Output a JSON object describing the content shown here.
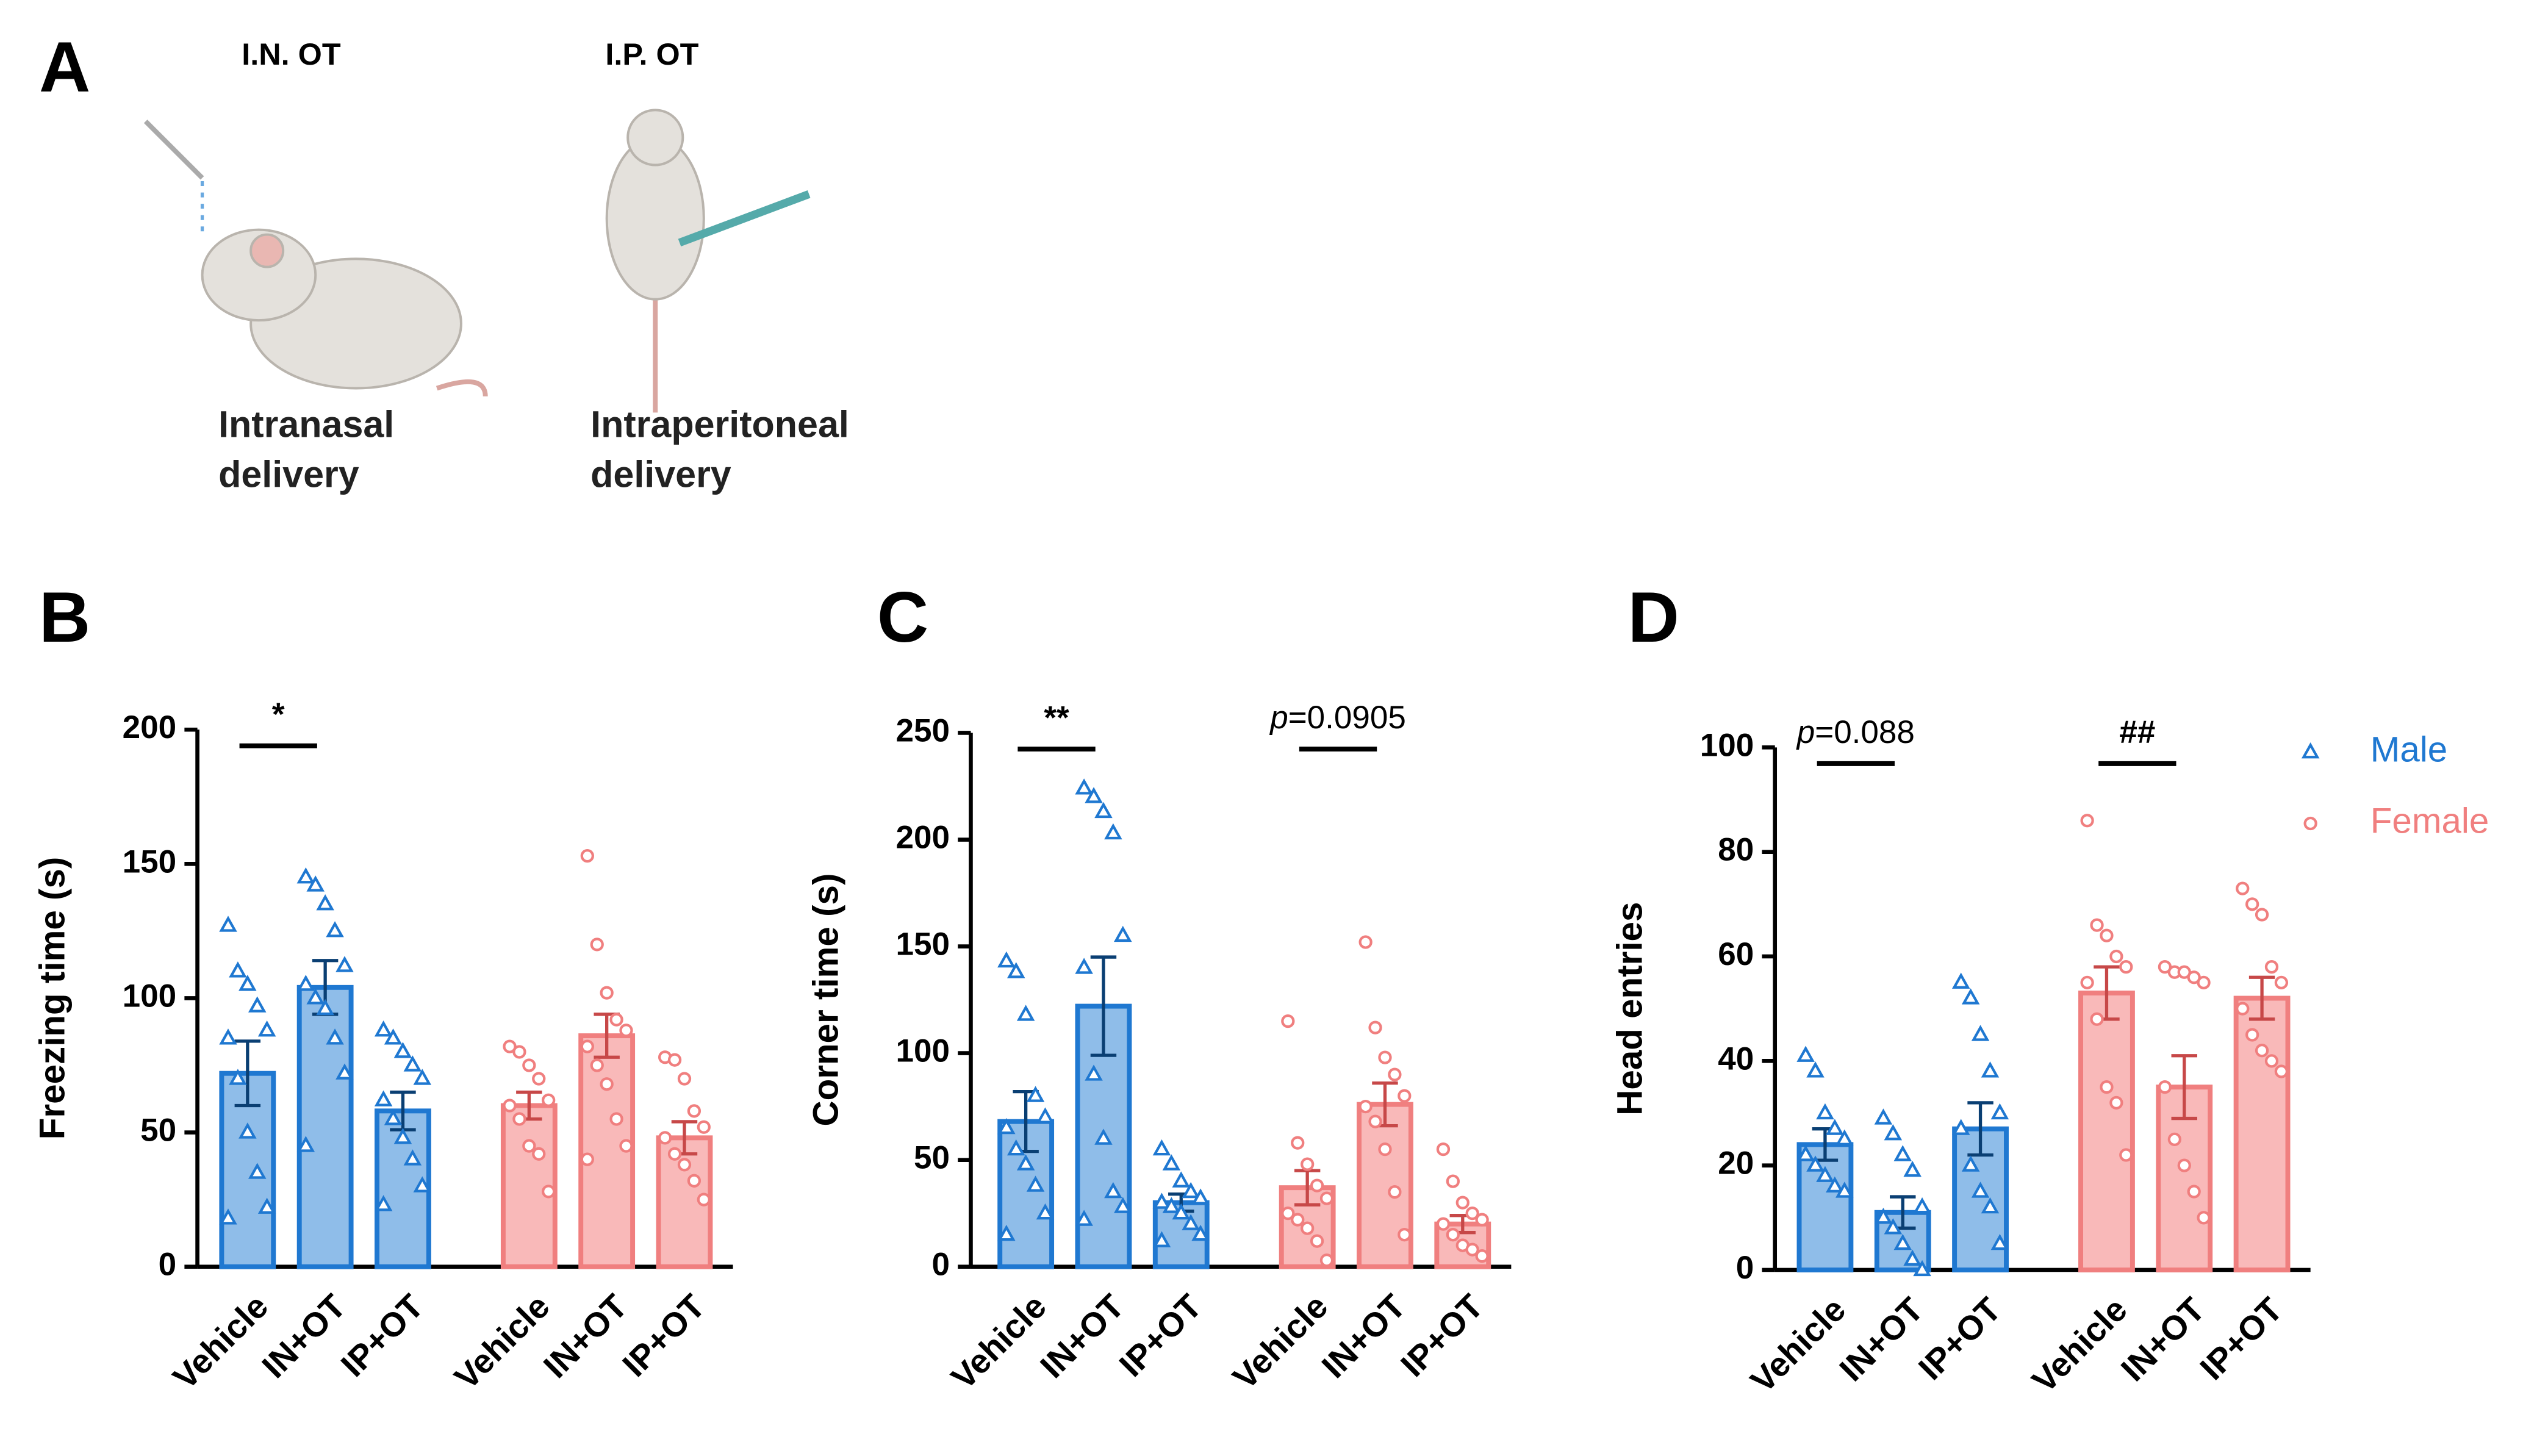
{
  "panel_a": {
    "label": "A",
    "items": [
      {
        "title": "I.N. OT",
        "caption": [
          "Intranasal",
          "delivery"
        ]
      },
      {
        "title": "I.P. OT",
        "caption": [
          "Intraperitoneal",
          "delivery"
        ]
      }
    ]
  },
  "chart_data": [
    {
      "type": "bar",
      "panel": "B",
      "ylabel": "Freezing time (s)",
      "categories": [
        "Vehicle",
        "IN+OT",
        "IP+OT",
        "Vehicle",
        "IN+OT",
        "IP+OT"
      ],
      "ylim": [
        0,
        200
      ],
      "yticks": [
        0,
        50,
        100,
        150,
        200
      ],
      "series": [
        {
          "color": "#1f78d1",
          "fill": "#8fbde9",
          "marker": "triangle",
          "annotation": "*",
          "values": [
            72,
            104,
            58,
            null,
            null,
            null
          ],
          "errors": [
            12,
            10,
            7,
            null,
            null,
            null
          ],
          "points": [
            [
              127,
              110,
              105,
              97,
              88,
              85,
              70,
              50,
              35,
              22,
              18
            ],
            [
              145,
              142,
              135,
              125,
              112,
              105,
              100,
              96,
              85,
              72,
              45
            ],
            [
              88,
              85,
              80,
              75,
              70,
              62,
              55,
              48,
              40,
              30,
              23
            ],
            null,
            null,
            null
          ]
        },
        {
          "color": "#f07f7f",
          "fill": "#f9b9b9",
          "marker": "circle",
          "values": [
            null,
            null,
            null,
            60,
            86,
            48
          ],
          "errors": [
            null,
            null,
            null,
            5,
            8,
            6
          ],
          "points": [
            null,
            null,
            null,
            [
              82,
              80,
              75,
              70,
              62,
              60,
              55,
              45,
              42,
              28
            ],
            [
              153,
              120,
              102,
              92,
              88,
              82,
              75,
              68,
              55,
              45,
              40
            ],
            [
              78,
              77,
              70,
              58,
              52,
              48,
              42,
              38,
              32,
              25
            ]
          ]
        }
      ]
    },
    {
      "type": "bar",
      "panel": "C",
      "ylabel": "Corner time (s)",
      "categories": [
        "Vehicle",
        "IN+OT",
        "IP+OT",
        "Vehicle",
        "IN+OT",
        "IP+OT"
      ],
      "ylim": [
        0,
        250
      ],
      "yticks": [
        0,
        50,
        100,
        150,
        200,
        250
      ],
      "series": [
        {
          "color": "#1f78d1",
          "fill": "#8fbde9",
          "marker": "triangle",
          "annotation": "**",
          "values": [
            68,
            122,
            30,
            null,
            null,
            null
          ],
          "errors": [
            14,
            23,
            4,
            null,
            null,
            null
          ],
          "points": [
            [
              143,
              138,
              118,
              80,
              70,
              65,
              55,
              48,
              38,
              25,
              15
            ],
            [
              224,
              220,
              213,
              203,
              155,
              140,
              90,
              60,
              35,
              28,
              22
            ],
            [
              55,
              48,
              40,
              35,
              32,
              30,
              28,
              25,
              20,
              15,
              12
            ],
            null,
            null,
            null
          ]
        },
        {
          "color": "#f07f7f",
          "fill": "#f9b9b9",
          "marker": "circle",
          "annotation": "p=0.0905",
          "values": [
            null,
            null,
            null,
            37,
            76,
            20
          ],
          "errors": [
            null,
            null,
            null,
            8,
            10,
            4
          ],
          "points": [
            null,
            null,
            null,
            [
              115,
              58,
              48,
              38,
              32,
              25,
              22,
              18,
              12,
              3
            ],
            [
              152,
              112,
              98,
              90,
              80,
              75,
              68,
              55,
              35,
              15
            ],
            [
              55,
              40,
              30,
              25,
              22,
              20,
              15,
              10,
              8,
              5
            ]
          ]
        }
      ]
    },
    {
      "type": "bar",
      "panel": "D",
      "ylabel": "Head entries",
      "legend": "upper right",
      "categories": [
        "Vehicle",
        "IN+OT",
        "IP+OT",
        "Vehicle",
        "IN+OT",
        "IP+OT"
      ],
      "ylim": [
        0,
        100
      ],
      "yticks": [
        0,
        20,
        40,
        60,
        80,
        100
      ],
      "series": [
        {
          "name": "Male",
          "color": "#1f78d1",
          "fill": "#8fbde9",
          "marker": "triangle",
          "annotation": "p=0.088",
          "values": [
            24,
            11,
            27,
            null,
            null,
            null
          ],
          "errors": [
            3,
            3,
            5,
            null,
            null,
            null
          ],
          "points": [
            [
              41,
              38,
              30,
              27,
              25,
              22,
              20,
              18,
              16,
              15
            ],
            [
              29,
              26,
              22,
              19,
              12,
              10,
              8,
              5,
              2,
              0
            ],
            [
              55,
              52,
              45,
              38,
              30,
              27,
              20,
              15,
              12,
              5
            ],
            null,
            null,
            null
          ]
        },
        {
          "name": "Female",
          "color": "#f07f7f",
          "fill": "#f9b9b9",
          "marker": "circle",
          "annotation": "##",
          "values": [
            null,
            null,
            null,
            53,
            35,
            52
          ],
          "errors": [
            null,
            null,
            null,
            5,
            6,
            4
          ],
          "points": [
            null,
            null,
            null,
            [
              86,
              66,
              64,
              60,
              58,
              55,
              48,
              35,
              32,
              22
            ],
            [
              58,
              57,
              57,
              56,
              55,
              35,
              25,
              20,
              15,
              10
            ],
            [
              73,
              70,
              68,
              58,
              55,
              50,
              45,
              42,
              40,
              38
            ]
          ]
        }
      ]
    }
  ]
}
